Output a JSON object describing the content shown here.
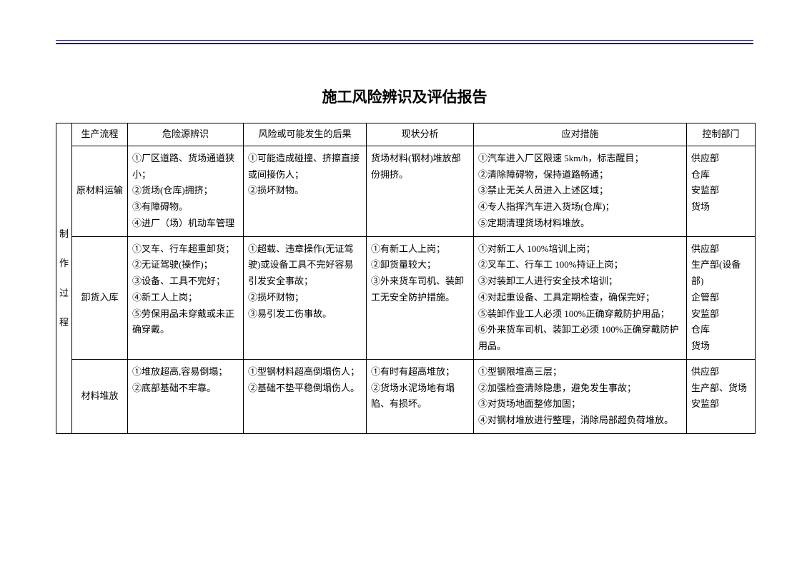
{
  "doc": {
    "title": "施工风险辨识及评估报告"
  },
  "headers": {
    "vgroup": "制\n作\n过\n程",
    "process": "生产流程",
    "hazard": "危险源辨识",
    "risk": "风险或可能发生的后果",
    "current": "现状分析",
    "measure": "应对措施",
    "dept": "控制部门"
  },
  "rows": [
    {
      "process": "原材料运输",
      "hazard": "①厂区道路、货场通道狭小；\n②货场(仓库)拥挤；\n③有障碍物。\n④进厂（场）机动车管理",
      "risk": "①可能造成碰撞、挤擦直接或间接伤人；\n②损坏财物。",
      "current": "货场材料(钢材)堆放部份拥挤。",
      "measure": "①汽车进入厂区限速 5km/h，标志醒目；\n②清除障碍物，保持道路畅通；\n③禁止无关人员进入上述区域；\n④专人指挥汽车进入货场(仓库)；\n⑤定期清理货场材料堆放。",
      "dept": "供应部\n仓库\n安监部\n货场"
    },
    {
      "process": "卸货入库",
      "hazard": "①叉车、行车超重卸货；\n②无证驾驶(操作)；\n③设备、工具不完好；\n④新工人上岗；\n⑤劳保用品未穿戴或未正确穿戴。",
      "risk": "①超载、违章操作(无证驾驶)或设备工具不完好容易引发安全事故；\n②损坏财物；\n③易引发工伤事故。",
      "current": "①有新工人上岗；\n②卸货量较大；\n③外来货车司机、装卸工无安全防护措施。",
      "measure": "①对新工人 100%培训上岗；\n②叉车工、行车工 100%持证上岗；\n③对装卸工人进行安全技术培训；\n④对起重设备、工具定期检查，确保完好；\n⑤装卸作业工人必须 100%正确穿戴防护用品；\n⑥外来货车司机、装卸工必须 100%正确穿戴防护用品。",
      "dept": "供应部\n生产部(设备部)\n企管部\n安监部\n仓库\n货场"
    },
    {
      "process": "材料堆放",
      "hazard": "①堆放超高,容易倒塌；\n②底部基础不牢靠。",
      "risk": "①型钢材料超高倒塌伤人；\n②基础不垫平稳倒塌伤人。",
      "current": "①有时有超高堆放；\n②货场水泥场地有塌陷、有损坏。",
      "measure": "①型钢限堆高三层；\n②加强检查清除隐患，避免发生事故；\n③对货场地面整修加固；\n④对钢材堆放进行整理，消除局部超负荷堆放。",
      "dept": "供应部\n生产部、货场\n安监部"
    }
  ]
}
